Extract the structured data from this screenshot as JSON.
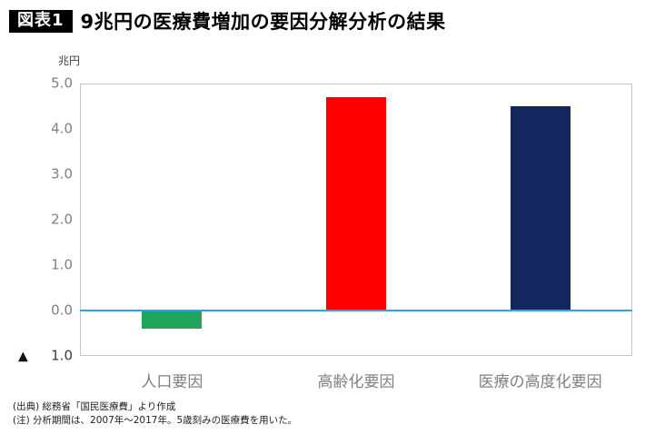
{
  "header": {
    "badge": "図表1",
    "title": "9兆円の医療費増加の要因分解分析の結果"
  },
  "chart_data": {
    "type": "bar",
    "title": "9兆円の医療費増加の要因分解分析の結果",
    "unit_label": "兆円",
    "categories": [
      "人口要因",
      "高齢化要因",
      "医療の高度化要因"
    ],
    "values": [
      -0.4,
      4.7,
      4.5
    ],
    "bar_colors": [
      "#1fa45c",
      "#fe0000",
      "#14265e"
    ],
    "ylim": [
      -1.0,
      5.0
    ],
    "yticks": [
      5.0,
      4.0,
      3.0,
      2.0,
      1.0,
      0.0,
      -1.0
    ],
    "ytick_labels": [
      "5.0",
      "4.0",
      "3.0",
      "2.0",
      "1.0",
      "0.0",
      "▲ 1.0"
    ],
    "zero_line_color": "#2aa7df",
    "grid": false,
    "legend": "none"
  },
  "footer": {
    "source": "(出典) 総務省「国民医療費」より作成",
    "note": "(注) 分析期間は、2007年〜2017年。5歳刻みの医療費を用いた。"
  }
}
